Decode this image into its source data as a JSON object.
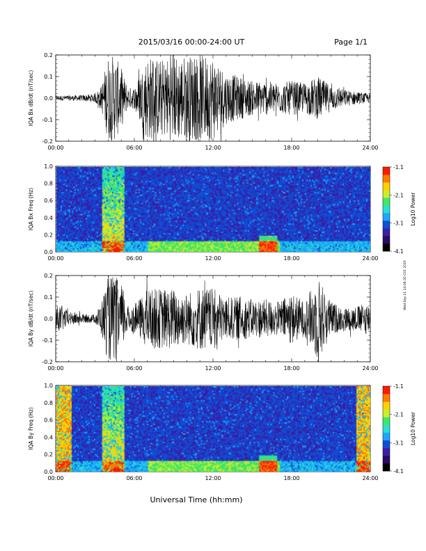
{
  "header": {
    "title": "2015/03/16  00:00-24:00 UT",
    "page": "Page 1/1"
  },
  "footer": {
    "xlabel": "Universal Time (hh:mm)",
    "side_stamp": "Wed Sep 11 14:06:30 CST 2019"
  },
  "colors": {
    "colormap": [
      "#000000",
      "#2a0a66",
      "#3a1fa8",
      "#0f4fd6",
      "#1aa8ff",
      "#27e0d0",
      "#3ee86a",
      "#c8ef2a",
      "#ffd000",
      "#ff7a00",
      "#ff1a00"
    ],
    "spec_background": "#3a2a8e",
    "trace": "#000000"
  },
  "chart_data": [
    {
      "type": "line",
      "ylabel": "IQA Bx dB/dt (nT/sec)",
      "xlim": [
        0,
        24
      ],
      "ylim": [
        -0.2,
        0.2
      ],
      "xticks": [
        "00:00",
        "06:00",
        "12:00",
        "18:00",
        "24:00"
      ],
      "yticks": [
        "-0.2",
        "-0.1",
        "0.0",
        "0.1",
        "0.2"
      ],
      "envelope": {
        "x": [
          0,
          1,
          2,
          3,
          3.5,
          4,
          4.5,
          5,
          5.5,
          6,
          7,
          8,
          9,
          10,
          11,
          12,
          13,
          14,
          15,
          16,
          17,
          18,
          19,
          20,
          21,
          22,
          23,
          24
        ],
        "amplitude": [
          0.012,
          0.012,
          0.014,
          0.02,
          0.06,
          0.2,
          0.2,
          0.14,
          0.05,
          0.05,
          0.2,
          0.18,
          0.2,
          0.2,
          0.2,
          0.2,
          0.12,
          0.1,
          0.08,
          0.08,
          0.07,
          0.08,
          0.07,
          0.1,
          0.06,
          0.04,
          0.03,
          0.02
        ]
      }
    },
    {
      "type": "heatmap",
      "ylabel": "IQA Bx Freq (Hz)",
      "xlim": [
        0,
        24
      ],
      "ylim": [
        0,
        1.0
      ],
      "xticks": [
        "00:00",
        "06:00",
        "12:00",
        "18:00",
        "24:00"
      ],
      "yticks": [
        "0.0",
        "0.2",
        "0.4",
        "0.6",
        "0.8",
        "1.0"
      ],
      "colorbar": {
        "label": "Log10 Power",
        "range": [
          -4.1,
          -1.1
        ],
        "ticks": [
          "-1.1",
          "-2.1",
          "-3.1",
          "-4.1"
        ]
      }
    },
    {
      "type": "line",
      "ylabel": "IQA By dB/dt (nT/sec)",
      "xlim": [
        0,
        24
      ],
      "ylim": [
        -0.2,
        0.2
      ],
      "xticks": [
        "00:00",
        "06:00",
        "12:00",
        "18:00",
        "24:00"
      ],
      "yticks": [
        "-0.2",
        "-0.1",
        "0.0",
        "0.1",
        "0.2"
      ],
      "envelope": {
        "x": [
          0,
          0.5,
          1,
          1.5,
          2,
          3,
          3.5,
          4,
          4.5,
          5,
          5.5,
          6,
          7,
          8,
          9,
          10,
          11,
          12,
          13,
          14,
          15,
          16,
          17,
          18,
          19,
          20,
          21,
          22,
          23,
          24
        ],
        "amplitude": [
          0.06,
          0.06,
          0.03,
          0.03,
          0.02,
          0.02,
          0.08,
          0.2,
          0.2,
          0.16,
          0.06,
          0.06,
          0.14,
          0.14,
          0.14,
          0.12,
          0.15,
          0.14,
          0.1,
          0.1,
          0.09,
          0.09,
          0.08,
          0.12,
          0.08,
          0.2,
          0.08,
          0.05,
          0.06,
          0.08
        ]
      }
    },
    {
      "type": "heatmap",
      "ylabel": "IQA By Freq (Hz)",
      "xlim": [
        0,
        24
      ],
      "ylim": [
        0,
        1.0
      ],
      "xticks": [
        "00:00",
        "06:00",
        "12:00",
        "18:00",
        "24:00"
      ],
      "yticks": [
        "0.0",
        "0.2",
        "0.4",
        "0.6",
        "0.8",
        "1.0"
      ],
      "colorbar": {
        "label": "Log10 Power",
        "range": [
          -4.1,
          -1.1
        ],
        "ticks": [
          "-1.1",
          "-2.1",
          "-3.1",
          "-4.1"
        ]
      }
    }
  ]
}
